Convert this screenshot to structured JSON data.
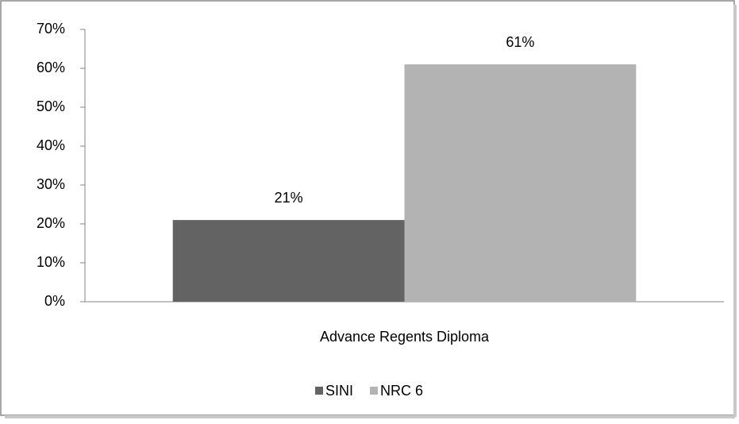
{
  "chart_data": {
    "type": "bar",
    "categories": [
      "Advance Regents Diploma"
    ],
    "series": [
      {
        "name": "SINI",
        "color": "#636363",
        "values": [
          21
        ],
        "value_labels": [
          "21%"
        ]
      },
      {
        "name": "NRC 6",
        "color": "#b3b3b3",
        "values": [
          61
        ],
        "value_labels": [
          "61%"
        ]
      }
    ],
    "ylim": [
      0,
      70
    ],
    "yticks": [
      {
        "value": 0,
        "label": "0%"
      },
      {
        "value": 10,
        "label": "10%"
      },
      {
        "value": 20,
        "label": "20%"
      },
      {
        "value": 30,
        "label": "30%"
      },
      {
        "value": 40,
        "label": "40%"
      },
      {
        "value": 50,
        "label": "50%"
      },
      {
        "value": 60,
        "label": "60%"
      },
      {
        "value": 70,
        "label": "70%"
      }
    ],
    "grid": false,
    "legend": "bottom"
  }
}
